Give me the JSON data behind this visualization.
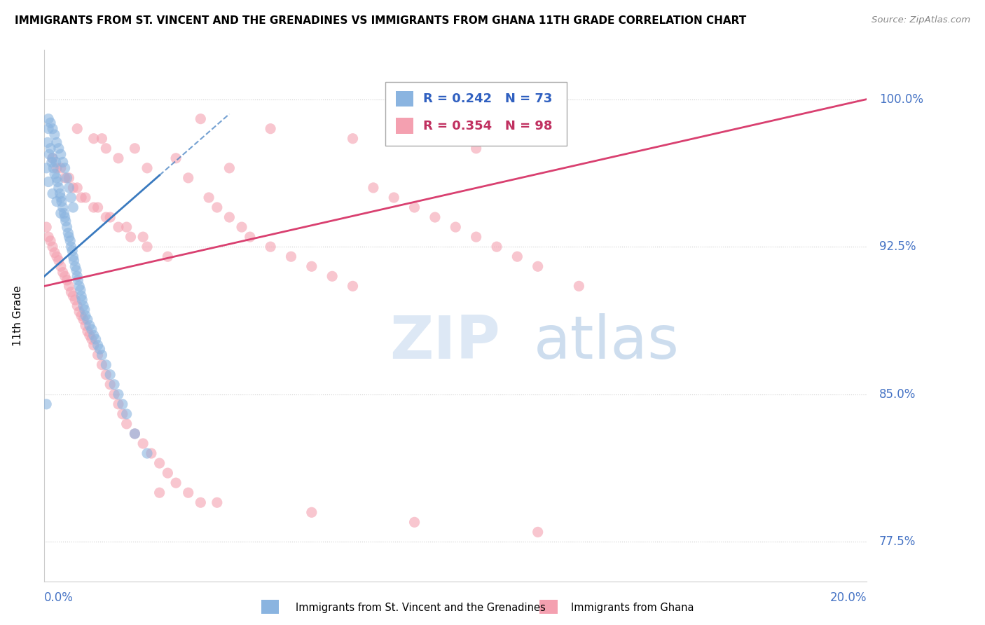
{
  "title": "IMMIGRANTS FROM ST. VINCENT AND THE GRENADINES VS IMMIGRANTS FROM GHANA 11TH GRADE CORRELATION CHART",
  "source": "Source: ZipAtlas.com",
  "ylabel": "11th Grade",
  "xlim": [
    0.0,
    20.0
  ],
  "ylim": [
    75.5,
    102.5
  ],
  "ytick_labels": [
    "100.0%",
    "92.5%",
    "85.0%",
    "77.5%"
  ],
  "ytick_vals": [
    100.0,
    92.5,
    85.0,
    77.5
  ],
  "xtick_left": "0.0%",
  "xtick_right": "20.0%",
  "legend1_label": "Immigrants from St. Vincent and the Grenadines",
  "legend2_label": "Immigrants from Ghana",
  "r1": 0.242,
  "n1": 73,
  "r2": 0.354,
  "n2": 98,
  "color_blue": "#8ab4e0",
  "color_pink": "#f4a0b0",
  "trend_blue": "#3a7abf",
  "trend_pink": "#d94070",
  "watermark_zip": "ZIP",
  "watermark_atlas": "atlas",
  "scatter_blue_x": [
    0.05,
    0.08,
    0.1,
    0.12,
    0.15,
    0.18,
    0.2,
    0.22,
    0.25,
    0.28,
    0.3,
    0.32,
    0.35,
    0.38,
    0.4,
    0.42,
    0.45,
    0.48,
    0.5,
    0.52,
    0.55,
    0.58,
    0.6,
    0.63,
    0.65,
    0.68,
    0.7,
    0.72,
    0.75,
    0.78,
    0.8,
    0.82,
    0.85,
    0.88,
    0.9,
    0.92,
    0.95,
    0.98,
    1.0,
    1.05,
    1.1,
    1.15,
    1.2,
    1.25,
    1.3,
    1.35,
    1.4,
    1.5,
    1.6,
    1.7,
    1.8,
    1.9,
    2.0,
    2.2,
    2.5,
    0.1,
    0.15,
    0.2,
    0.25,
    0.3,
    0.35,
    0.4,
    0.45,
    0.5,
    0.55,
    0.6,
    0.65,
    0.7,
    0.1,
    0.2,
    0.3,
    0.4,
    0.05
  ],
  "scatter_blue_y": [
    96.5,
    97.8,
    98.5,
    97.2,
    97.5,
    96.8,
    97.0,
    96.5,
    96.2,
    96.8,
    96.0,
    95.8,
    95.5,
    95.2,
    95.0,
    94.8,
    94.5,
    94.2,
    94.0,
    93.8,
    93.5,
    93.2,
    93.0,
    92.8,
    92.5,
    92.3,
    92.0,
    91.8,
    91.5,
    91.3,
    91.0,
    90.8,
    90.5,
    90.3,
    90.0,
    89.8,
    89.5,
    89.3,
    89.0,
    88.8,
    88.5,
    88.3,
    88.0,
    87.8,
    87.5,
    87.3,
    87.0,
    86.5,
    86.0,
    85.5,
    85.0,
    84.5,
    84.0,
    83.0,
    82.0,
    99.0,
    98.8,
    98.5,
    98.2,
    97.8,
    97.5,
    97.2,
    96.8,
    96.5,
    96.0,
    95.5,
    95.0,
    94.5,
    95.8,
    95.2,
    94.8,
    94.2,
    84.5
  ],
  "scatter_pink_x": [
    0.05,
    0.1,
    0.15,
    0.2,
    0.25,
    0.3,
    0.35,
    0.4,
    0.45,
    0.5,
    0.55,
    0.6,
    0.65,
    0.7,
    0.75,
    0.8,
    0.85,
    0.9,
    0.95,
    1.0,
    1.05,
    1.1,
    1.15,
    1.2,
    1.3,
    1.4,
    1.5,
    1.6,
    1.7,
    1.8,
    1.9,
    2.0,
    2.2,
    2.4,
    2.6,
    2.8,
    3.0,
    3.2,
    3.5,
    3.8,
    4.0,
    4.2,
    4.5,
    4.8,
    5.0,
    5.5,
    6.0,
    6.5,
    7.0,
    7.5,
    8.0,
    8.5,
    9.0,
    9.5,
    10.0,
    10.5,
    11.0,
    11.5,
    12.0,
    13.0,
    0.3,
    0.5,
    0.7,
    0.9,
    1.2,
    1.5,
    1.8,
    2.1,
    2.5,
    3.0,
    0.2,
    0.4,
    0.6,
    0.8,
    1.0,
    1.3,
    1.6,
    2.0,
    2.4,
    1.5,
    1.8,
    2.5,
    3.5,
    1.2,
    2.2,
    3.2,
    4.5,
    0.8,
    1.4,
    3.8,
    5.5,
    7.5,
    10.5,
    2.8,
    4.2,
    6.5,
    9.0,
    12.0
  ],
  "scatter_pink_y": [
    93.5,
    93.0,
    92.8,
    92.5,
    92.2,
    92.0,
    91.8,
    91.5,
    91.2,
    91.0,
    90.8,
    90.5,
    90.2,
    90.0,
    89.8,
    89.5,
    89.2,
    89.0,
    88.8,
    88.5,
    88.2,
    88.0,
    87.8,
    87.5,
    87.0,
    86.5,
    86.0,
    85.5,
    85.0,
    84.5,
    84.0,
    83.5,
    83.0,
    82.5,
    82.0,
    81.5,
    81.0,
    80.5,
    80.0,
    79.5,
    95.0,
    94.5,
    94.0,
    93.5,
    93.0,
    92.5,
    92.0,
    91.5,
    91.0,
    90.5,
    95.5,
    95.0,
    94.5,
    94.0,
    93.5,
    93.0,
    92.5,
    92.0,
    91.5,
    90.5,
    96.5,
    96.0,
    95.5,
    95.0,
    94.5,
    94.0,
    93.5,
    93.0,
    92.5,
    92.0,
    97.0,
    96.5,
    96.0,
    95.5,
    95.0,
    94.5,
    94.0,
    93.5,
    93.0,
    97.5,
    97.0,
    96.5,
    96.0,
    98.0,
    97.5,
    97.0,
    96.5,
    98.5,
    98.0,
    99.0,
    98.5,
    98.0,
    97.5,
    80.0,
    79.5,
    79.0,
    78.5,
    78.0
  ]
}
